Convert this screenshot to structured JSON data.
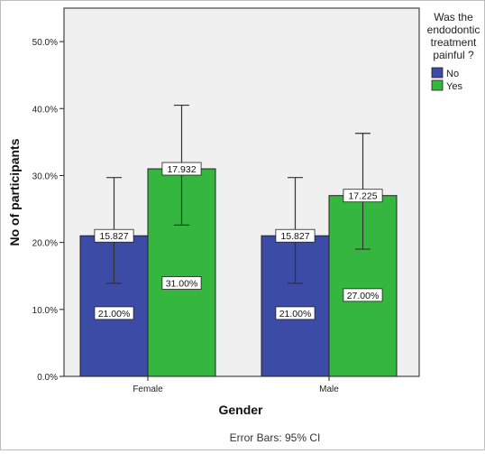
{
  "chart_data": {
    "type": "bar",
    "title": "",
    "xlabel": "Gender",
    "ylabel": "No of participants",
    "categories": [
      "Female",
      "Male"
    ],
    "ylim": [
      0,
      55
    ],
    "ytick_values": [
      0,
      10,
      20,
      30,
      40,
      50
    ],
    "ytick_labels": [
      "0.0%",
      "10.0%",
      "20.0%",
      "30.0%",
      "40.0%",
      "50.0%"
    ],
    "series": [
      {
        "name": "No",
        "color": "#3b4ba6",
        "values": [
          21.0,
          21.0
        ],
        "value_labels": [
          "21.00%",
          "21.00%"
        ],
        "ci_low": [
          13.9,
          13.9
        ],
        "ci_high": [
          29.7,
          29.7
        ],
        "ci_labels": [
          "15.827",
          "15.827"
        ]
      },
      {
        "name": "Yes",
        "color": "#35b63f",
        "values": [
          31.0,
          27.0
        ],
        "value_labels": [
          "31.00%",
          "27.00%"
        ],
        "ci_low": [
          22.6,
          19.0
        ],
        "ci_high": [
          40.5,
          36.3
        ],
        "ci_labels": [
          "17.932",
          "17.225"
        ]
      }
    ],
    "legend": {
      "title_lines": [
        "Was the",
        "endodontic",
        "treatment",
        "painful ?"
      ],
      "placement": "right"
    },
    "footnote": "Error Bars: 95% CI",
    "grid": false,
    "plot_background": "#f0f0f0"
  }
}
